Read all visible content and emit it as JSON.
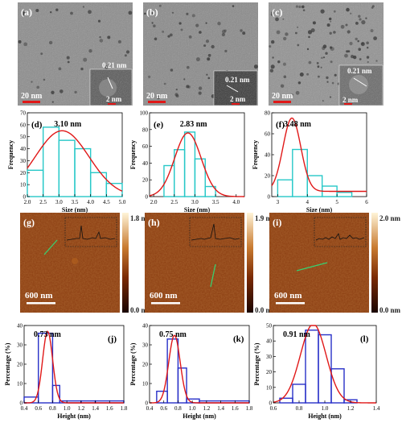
{
  "tem_panels": [
    {
      "label": "(a)",
      "scalebar": "20 nm",
      "inset_scalebar": "2 nm",
      "lattice": "0.21 nm"
    },
    {
      "label": "(b)",
      "scalebar": "20 nm",
      "inset_scalebar": "2 nm",
      "lattice": "0.21 nm"
    },
    {
      "label": "(c)",
      "scalebar": "20 nm",
      "inset_scalebar": "2 nm",
      "lattice": "0.21 nm"
    }
  ],
  "afm_panels": [
    {
      "label": "(g)",
      "scalebar": "600 nm",
      "cbar_max": "1.8 nm",
      "cbar_min": "0.0 nm"
    },
    {
      "label": "(h)",
      "scalebar": "600 nm",
      "cbar_max": "1.9 nm",
      "cbar_min": "0.0 nm"
    },
    {
      "label": "(i)",
      "scalebar": "600 nm",
      "cbar_max": "2.0 nm",
      "cbar_min": "0.0 nm"
    }
  ],
  "colors": {
    "bar_cyan": "#28c8c8",
    "bar_blue": "#2830c8",
    "fit_red": "#e01818",
    "afm_bg": "#8a3c10"
  },
  "chart_data": [
    {
      "type": "bar",
      "label": "(d)",
      "annotation": "3.10 nm",
      "xlabel": "Size (nm)",
      "ylabel": "Frequency",
      "xlim": [
        2.0,
        5.0
      ],
      "ylim": [
        0,
        70
      ],
      "xticks": [
        "2.0",
        "2.5",
        "3.0",
        "3.5",
        "4.0",
        "4.5",
        "5.0"
      ],
      "yticks": [
        "0",
        "10",
        "20",
        "30",
        "40",
        "50",
        "60",
        "70"
      ],
      "bins": [
        [
          2.0,
          2.5,
          22
        ],
        [
          2.5,
          3.0,
          58
        ],
        [
          3.0,
          3.5,
          47
        ],
        [
          3.5,
          4.0,
          40
        ],
        [
          4.0,
          4.5,
          20
        ],
        [
          4.5,
          5.0,
          11
        ]
      ],
      "fit": {
        "mu": 3.1,
        "sigma": 0.85,
        "amp": 55
      }
    },
    {
      "type": "bar",
      "label": "(e)",
      "annotation": "2.83 nm",
      "xlabel": "Size (nm)",
      "ylabel": "Frequency",
      "xlim": [
        1.9,
        4.2
      ],
      "ylim": [
        0,
        100
      ],
      "xticks": [
        "2.0",
        "2.5",
        "3.0",
        "3.5",
        "4.0"
      ],
      "yticks": [
        "0",
        "20",
        "40",
        "60",
        "80",
        "100"
      ],
      "bins": [
        [
          2.25,
          2.5,
          37
        ],
        [
          2.5,
          2.75,
          56
        ],
        [
          2.75,
          3.0,
          77
        ],
        [
          3.0,
          3.25,
          45
        ],
        [
          3.25,
          3.5,
          12
        ]
      ],
      "fit": {
        "mu": 2.83,
        "sigma": 0.32,
        "amp": 76
      }
    },
    {
      "type": "bar",
      "label": "(f)",
      "annotation": "3.48 nm",
      "xlabel": "Size (nm)",
      "ylabel": "Frequency",
      "xlim": [
        2.8,
        6.0
      ],
      "ylim": [
        0,
        80
      ],
      "xticks": [
        "3",
        "4",
        "5",
        "6"
      ],
      "yticks": [
        "0",
        "20",
        "40",
        "60",
        "80"
      ],
      "bins": [
        [
          3.0,
          3.5,
          16
        ],
        [
          3.5,
          4.0,
          45
        ],
        [
          4.0,
          4.5,
          20
        ],
        [
          4.5,
          5.0,
          10
        ],
        [
          5.0,
          5.5,
          4
        ]
      ],
      "fit": {
        "mu": 3.48,
        "sigma": 0.3,
        "amp": 70,
        "offset": 5
      }
    },
    {
      "type": "bar",
      "label": "(j)",
      "annotation": "0.73 nm",
      "xlabel": "Height (nm)",
      "ylabel": "Percentage (%)",
      "xlim": [
        0.4,
        1.8
      ],
      "ylim": [
        0,
        40
      ],
      "xticks": [
        "0.4",
        "0.6",
        "0.8",
        "1.0",
        "1.2",
        "1.4",
        "1.6",
        "1.8"
      ],
      "yticks": [
        "0",
        "10",
        "20",
        "30",
        "40"
      ],
      "bins": [
        [
          0.4,
          0.6,
          3
        ],
        [
          0.6,
          0.8,
          36
        ],
        [
          0.8,
          0.9,
          9
        ],
        [
          0.9,
          1.2,
          1
        ],
        [
          1.2,
          1.4,
          1
        ],
        [
          1.4,
          1.8,
          1
        ]
      ],
      "fit": {
        "mu": 0.73,
        "sigma": 0.07,
        "amp": 37
      }
    },
    {
      "type": "bar",
      "label": "(k)",
      "annotation": "0.75 nm",
      "xlabel": "Height (nm)",
      "ylabel": "Percentage (%)",
      "xlim": [
        0.4,
        1.8
      ],
      "ylim": [
        0,
        40
      ],
      "xticks": [
        "0.4",
        "0.6",
        "0.8",
        "1.0",
        "1.2",
        "1.4",
        "1.6",
        "1.8"
      ],
      "yticks": [
        "0",
        "10",
        "20",
        "30",
        "40"
      ],
      "bins": [
        [
          0.5,
          0.65,
          6
        ],
        [
          0.65,
          0.8,
          33
        ],
        [
          0.8,
          0.92,
          18
        ],
        [
          0.92,
          1.1,
          2
        ],
        [
          1.1,
          1.8,
          1
        ]
      ],
      "fit": {
        "mu": 0.75,
        "sigma": 0.08,
        "amp": 35
      }
    },
    {
      "type": "bar",
      "label": "(l)",
      "annotation": "0.91 nm",
      "xlabel": "Height (nm)",
      "ylabel": "Percentage (%)",
      "xlim": [
        0.6,
        1.4
      ],
      "ylim": [
        0,
        50
      ],
      "xticks": [
        "0.6",
        "0.8",
        "1.0",
        "1.2",
        "1.4"
      ],
      "yticks": [
        "0",
        "10",
        "20",
        "30",
        "40",
        "50"
      ],
      "bins": [
        [
          0.65,
          0.75,
          3
        ],
        [
          0.75,
          0.85,
          12
        ],
        [
          0.85,
          0.95,
          47
        ],
        [
          0.95,
          1.05,
          44
        ],
        [
          1.05,
          1.15,
          22
        ],
        [
          1.15,
          1.25,
          2
        ]
      ],
      "fit": {
        "mu": 0.91,
        "sigma": 0.1,
        "amp": 51
      }
    }
  ]
}
